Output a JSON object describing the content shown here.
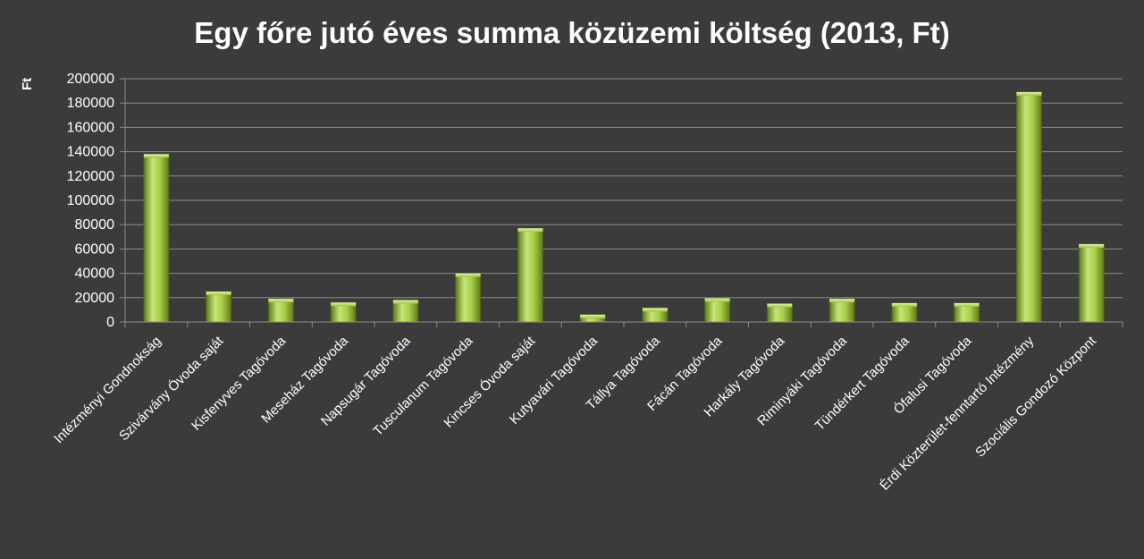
{
  "chart_data": {
    "type": "bar",
    "title": "Egy főre jutó éves summa közüzemi költség (2013, Ft)",
    "ylabel": "Ft",
    "xlabel": "",
    "ylim": [
      0,
      200000
    ],
    "yticks": [
      "0",
      "20000",
      "40000",
      "60000",
      "80000",
      "100000",
      "120000",
      "140000",
      "160000",
      "180000",
      "200000"
    ],
    "grid": true,
    "legend": "none",
    "categories": [
      "Intézményi Gondnokság",
      "Szivárvány Óvoda saját",
      "Kisfenyves Tagóvoda",
      "Meseház Tagóvoda",
      "Napsugár Tagóvoda",
      "Tusculanum Tagóvoda",
      "Kincses Óvoda saját",
      "Kutyavári Tagóvoda",
      "Tállya Tagóvoda",
      "Fácán Tagóvoda",
      "Harkály Tagóvoda",
      "Riminyáki Tagóvoda",
      "Tündérkert Tagóvoda",
      "Ófalusi Tagóvoda",
      "Érdi Közterület-fenntartó Intézmény",
      "Szociális Gondozó Központ"
    ],
    "values": [
      138000,
      25000,
      19000,
      16000,
      18000,
      40000,
      77000,
      6000,
      11500,
      19500,
      15000,
      19000,
      15500,
      15500,
      189000,
      64000
    ],
    "colors": {
      "background": "#3b3b3b",
      "bar": "#9ec43a",
      "grid": "#8c8c8c",
      "text": "#ffffff"
    }
  }
}
